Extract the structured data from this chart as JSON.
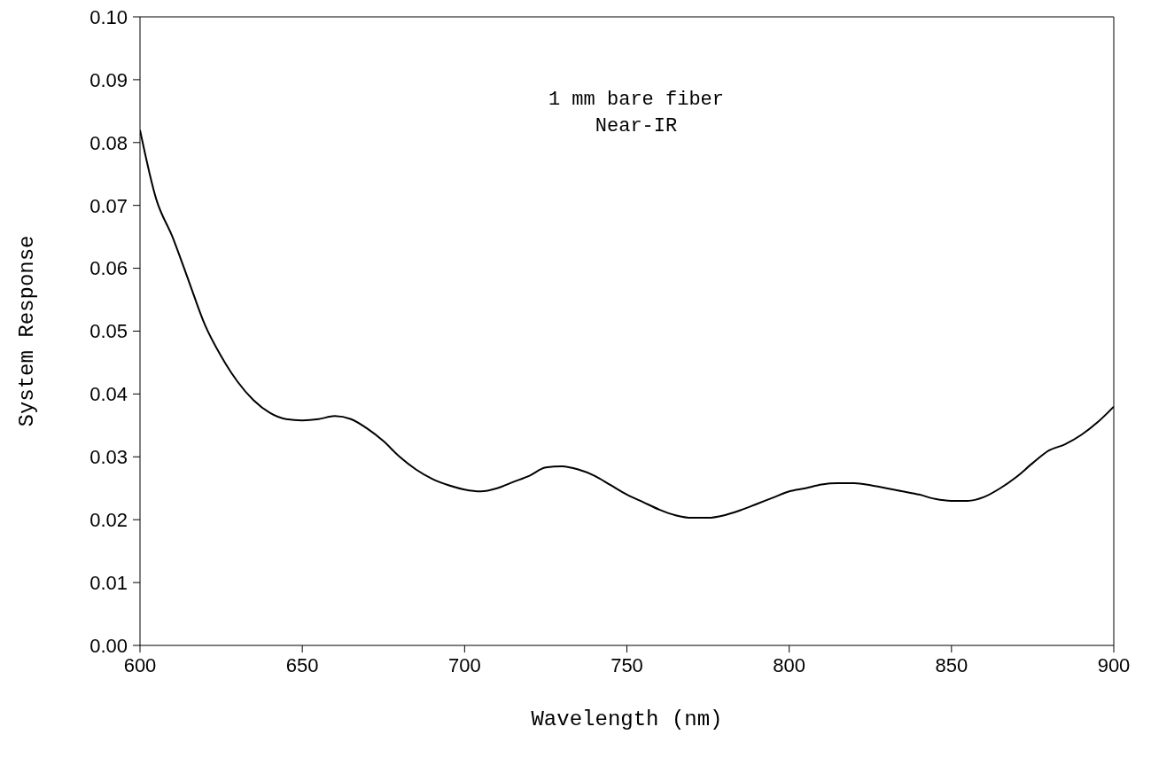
{
  "chart_data": {
    "type": "line",
    "xlabel": "Wavelength (nm)",
    "ylabel": "System Response",
    "annotations": [
      "1 mm bare fiber",
      "Near-IR"
    ],
    "x": [
      600,
      605,
      610,
      615,
      620,
      625,
      630,
      635,
      640,
      645,
      650,
      655,
      660,
      665,
      670,
      675,
      680,
      685,
      690,
      695,
      700,
      705,
      710,
      715,
      720,
      725,
      730,
      735,
      740,
      745,
      750,
      755,
      760,
      765,
      770,
      775,
      780,
      785,
      790,
      795,
      800,
      805,
      810,
      815,
      820,
      825,
      830,
      835,
      840,
      845,
      850,
      855,
      860,
      865,
      870,
      875,
      880,
      885,
      890,
      895,
      900
    ],
    "series": [
      {
        "color": "#000000",
        "values": [
          0.082,
          0.071,
          0.065,
          0.058,
          0.051,
          0.046,
          0.042,
          0.039,
          0.037,
          0.036,
          0.0358,
          0.036,
          0.0365,
          0.036,
          0.0345,
          0.0325,
          0.03,
          0.028,
          0.0265,
          0.0255,
          0.0248,
          0.0245,
          0.025,
          0.026,
          0.027,
          0.0283,
          0.0285,
          0.028,
          0.027,
          0.0255,
          0.024,
          0.0228,
          0.0216,
          0.0207,
          0.0203,
          0.0203,
          0.0207,
          0.0215,
          0.0225,
          0.0235,
          0.0245,
          0.025,
          0.0256,
          0.0258,
          0.0258,
          0.0255,
          0.025,
          0.0245,
          0.024,
          0.0233,
          0.023,
          0.023,
          0.0236,
          0.025,
          0.0268,
          0.029,
          0.031,
          0.032,
          0.0335,
          0.0355,
          0.038
        ]
      }
    ],
    "xlim": [
      600,
      900
    ],
    "xticks": [
      600,
      650,
      700,
      750,
      800,
      850,
      900
    ],
    "ylim": [
      0,
      0.1
    ],
    "yticks": [
      {
        "value": 0,
        "label": "0.00"
      },
      {
        "value": 0.01,
        "label": "0.01"
      },
      {
        "value": 0.02,
        "label": "0.02"
      },
      {
        "value": 0.03,
        "label": "0.03"
      },
      {
        "value": 0.04,
        "label": "0.04"
      },
      {
        "value": 0.05,
        "label": "0.05"
      },
      {
        "value": 0.06,
        "label": "0.06"
      },
      {
        "value": 0.07,
        "label": "0.07"
      },
      {
        "value": 0.08,
        "label": "0.08"
      },
      {
        "value": 0.09,
        "label": "0.09"
      },
      {
        "value": 0.1,
        "label": "0.10"
      }
    ],
    "grid": false,
    "marker": "none",
    "line_style": "solid"
  }
}
